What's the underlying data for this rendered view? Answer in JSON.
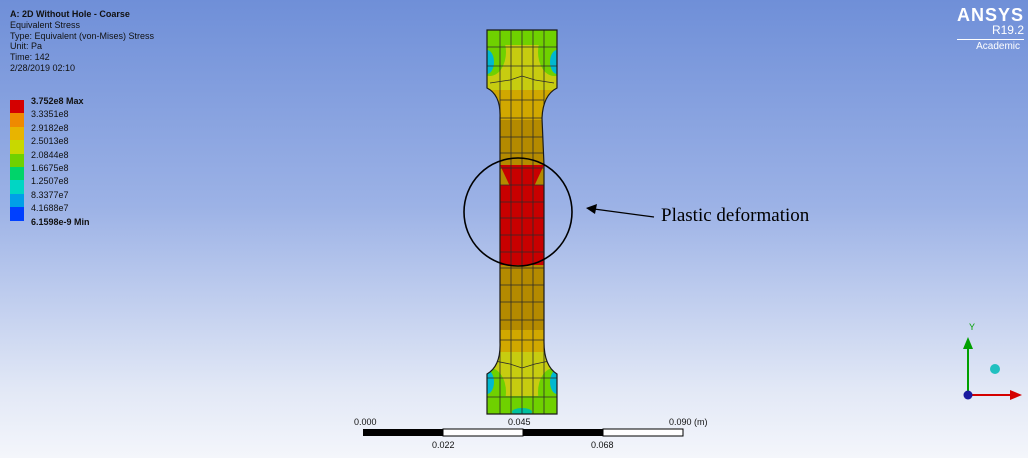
{
  "info": {
    "title": "A: 2D Without Hole - Coarse",
    "result": "Equivalent Stress",
    "type": "Type: Equivalent (von-Mises) Stress",
    "unit": "Unit: Pa",
    "time": "Time: 142",
    "date": "2/28/2019 02:10"
  },
  "legend": [
    {
      "label": "3.752e8 Max",
      "color": "#d40000"
    },
    {
      "label": "3.3351e8",
      "color": "#ef8a00"
    },
    {
      "label": "2.9182e8",
      "color": "#e8b400"
    },
    {
      "label": "2.5013e8",
      "color": "#c8d800"
    },
    {
      "label": "2.0844e8",
      "color": "#6fd100"
    },
    {
      "label": "1.6675e8",
      "color": "#00d46a"
    },
    {
      "label": "1.2507e8",
      "color": "#00d6c4"
    },
    {
      "label": "8.3377e7",
      "color": "#009fe8"
    },
    {
      "label": "4.1688e7",
      "color": "#0040ff"
    }
  ],
  "legend_min": "6.1598e-9 Min",
  "brand": {
    "name": "ANSYS",
    "version": "R19.2",
    "edition": "Academic"
  },
  "annotation": "Plastic deformation",
  "scale": {
    "top_labels": [
      "0.000",
      "0.045",
      "0.090 (m)"
    ],
    "bottom_labels": [
      "0.022",
      "0.068"
    ]
  },
  "triad": {
    "y_label": "Y",
    "x_color": "#d40000",
    "y_color": "#00a000"
  }
}
